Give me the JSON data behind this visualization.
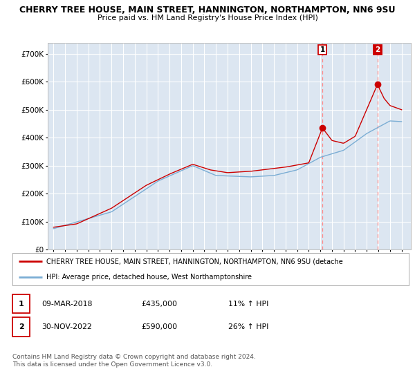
{
  "title": "CHERRY TREE HOUSE, MAIN STREET, HANNINGTON, NORTHAMPTON, NN6 9SU",
  "subtitle": "Price paid vs. HM Land Registry's House Price Index (HPI)",
  "title_fontsize": 9,
  "subtitle_fontsize": 8,
  "background_color": "#ffffff",
  "plot_bg_color": "#dce6f1",
  "grid_color": "#ffffff",
  "ylabel_ticks": [
    "£0",
    "£100K",
    "£200K",
    "£300K",
    "£400K",
    "£500K",
    "£600K",
    "£700K"
  ],
  "ytick_vals": [
    0,
    100000,
    200000,
    300000,
    400000,
    500000,
    600000,
    700000
  ],
  "ylim": [
    0,
    740000
  ],
  "xlim_start": 1994.5,
  "xlim_end": 2025.8,
  "transaction1": {
    "date_x": 2018.18,
    "price": 435000,
    "label": "1",
    "pct": "11%"
  },
  "transaction2": {
    "date_x": 2022.92,
    "price": 590000,
    "label": "2",
    "pct": "26%"
  },
  "red_line_color": "#cc0000",
  "blue_line_color": "#7aadd4",
  "dashed_color": "#ff8888",
  "legend_text1": "CHERRY TREE HOUSE, MAIN STREET, HANNINGTON, NORTHAMPTON, NN6 9SU (detache",
  "legend_text2": "HPI: Average price, detached house, West Northamptonshire",
  "table_row1": [
    "1",
    "09-MAR-2018",
    "£435,000",
    "11% ↑ HPI"
  ],
  "table_row2": [
    "2",
    "30-NOV-2022",
    "£590,000",
    "26% ↑ HPI"
  ],
  "footer": "Contains HM Land Registry data © Crown copyright and database right 2024.\nThis data is licensed under the Open Government Licence v3.0."
}
